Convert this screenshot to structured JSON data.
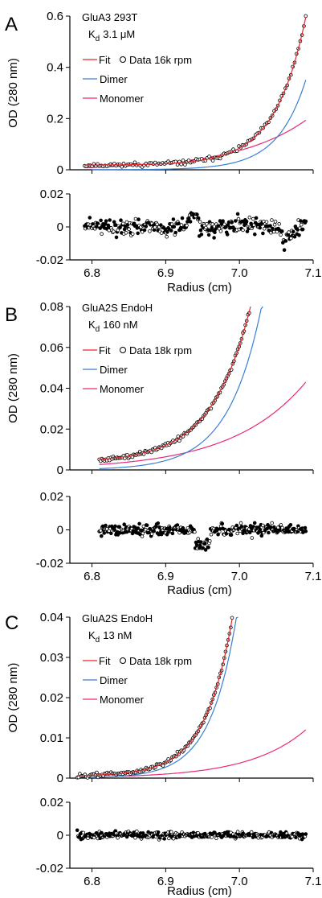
{
  "colors": {
    "fit": "#e8262b",
    "dimer": "#3a7fd5",
    "monomer": "#e8297a",
    "data": "#000000",
    "axis": "#000000"
  },
  "chart_data": [
    {
      "type": "scatter",
      "panel": "A",
      "sample": "GluA3 293T",
      "kd_prefix": "K",
      "kd_sub": "d",
      "kd_value": "3.1 μM",
      "ylabel": "OD (280 nm)",
      "xlabel": "Radius (cm)",
      "xlim": [
        6.77,
        7.1
      ],
      "xticks": [
        6.8,
        6.9,
        7.0,
        7.1
      ],
      "xtick_labels": [
        "6.8",
        "6.9",
        "7.0",
        "7.1"
      ],
      "main": {
        "ylim": [
          0,
          0.6
        ],
        "yticks": [
          0,
          0.2,
          0.4,
          0.6
        ],
        "ytick_labels": [
          "0",
          "0.2",
          "0.4",
          "0.6"
        ],
        "x_start": 6.79,
        "x_end": 7.09,
        "fit": {
          "b": 0.018,
          "a": 0.578,
          "k": 24.0,
          "x0": 7.09
        },
        "dimer": {
          "b": 0.0,
          "a": 0.455,
          "k": 26.0,
          "x0": 7.1,
          "start": 6.8
        },
        "monomer": {
          "b": 0.0,
          "a": 0.215,
          "k": 10.5,
          "x0": 7.1,
          "start": 6.79
        },
        "fit_end": 7.09
      },
      "residual": {
        "ylim": [
          -0.02,
          0.02
        ],
        "yticks": [
          -0.02,
          0,
          0.02
        ],
        "ytick_labels": [
          "-0.02",
          "0",
          "0.02"
        ],
        "noise": 0.004,
        "features": [
          [
            6.93,
            6.945,
            0.008
          ],
          [
            7.055,
            7.075,
            -0.009
          ]
        ]
      },
      "legend": {
        "fit": "Fit",
        "data": "Data 16k rpm",
        "dimer": "Dimer",
        "monomer": "Monomer"
      }
    },
    {
      "type": "scatter",
      "panel": "B",
      "sample": "GluA2S EndoH",
      "kd_prefix": "K",
      "kd_sub": "d",
      "kd_value": "160 nM",
      "ylabel": "OD (280 nm)",
      "xlabel": "Radius (cm)",
      "xlim": [
        6.77,
        7.1
      ],
      "xticks": [
        6.8,
        6.9,
        7.0,
        7.1
      ],
      "xtick_labels": [
        "6.8",
        "6.9",
        "7.0",
        "7.1"
      ],
      "main": {
        "ylim": [
          0,
          0.08
        ],
        "yticks": [
          0,
          0.02,
          0.04,
          0.06,
          0.08
        ],
        "ytick_labels": [
          "0",
          "0.02",
          "0.04",
          "0.06",
          "0.08"
        ],
        "x_start": 6.81,
        "x_end": 7.015,
        "fit": {
          "b": 0.0035,
          "a": 0.0765,
          "k": 19.0,
          "x0": 7.015
        },
        "dimer": {
          "b": 0.0,
          "a": 0.08,
          "k": 22.0,
          "x0": 7.03,
          "start": 6.81
        },
        "monomer": {
          "b": 0.0,
          "a": 0.043,
          "k": 10.0,
          "x0": 7.09,
          "start": 6.81
        },
        "fit_end": 7.015
      },
      "residual": {
        "ylim": [
          -0.02,
          0.02
        ],
        "yticks": [
          -0.02,
          0,
          0.02
        ],
        "ytick_labels": [
          "-0.02",
          "0",
          "0.02"
        ],
        "noise": 0.0028,
        "features": [
          [
            6.94,
            6.96,
            -0.011
          ]
        ]
      },
      "legend": {
        "fit": "Fit",
        "data": "Data 18k rpm",
        "dimer": "Dimer",
        "monomer": "Monomer"
      }
    },
    {
      "type": "scatter",
      "panel": "C",
      "sample": "GluA2S EndoH",
      "kd_prefix": "K",
      "kd_sub": "d",
      "kd_value": "13 nM",
      "ylabel": "OD (280 nm)",
      "xlabel": "Radius (cm)",
      "xlim": [
        6.77,
        7.1
      ],
      "xticks": [
        6.8,
        6.9,
        7.0,
        7.1
      ],
      "xtick_labels": [
        "6.8",
        "6.9",
        "7.0",
        "7.1"
      ],
      "main": {
        "ylim": [
          0,
          0.04
        ],
        "yticks": [
          0,
          0.01,
          0.02,
          0.03,
          0.04
        ],
        "ytick_labels": [
          "0",
          "0.01",
          "0.02",
          "0.03",
          "0.04"
        ],
        "x_start": 6.78,
        "x_end": 6.99,
        "fit": {
          "b": 0.0005,
          "a": 0.039,
          "k": 27.0,
          "x0": 6.99
        },
        "dimer": {
          "b": 0.0,
          "a": 0.039,
          "k": 28.0,
          "x0": 6.995,
          "start": 6.8
        },
        "monomer": {
          "b": 0.0,
          "a": 0.012,
          "k": 13.0,
          "x0": 7.09,
          "start": 6.84
        },
        "fit_end": 6.99
      },
      "residual": {
        "ylim": [
          -0.02,
          0.02
        ],
        "yticks": [
          -0.02,
          0,
          0.02
        ],
        "ytick_labels": [
          "-0.02",
          "0",
          "0.02"
        ],
        "noise": 0.0018,
        "features": []
      },
      "legend": {
        "fit": "Fit",
        "data": "Data 18k rpm",
        "dimer": "Dimer",
        "monomer": "Monomer"
      }
    }
  ]
}
